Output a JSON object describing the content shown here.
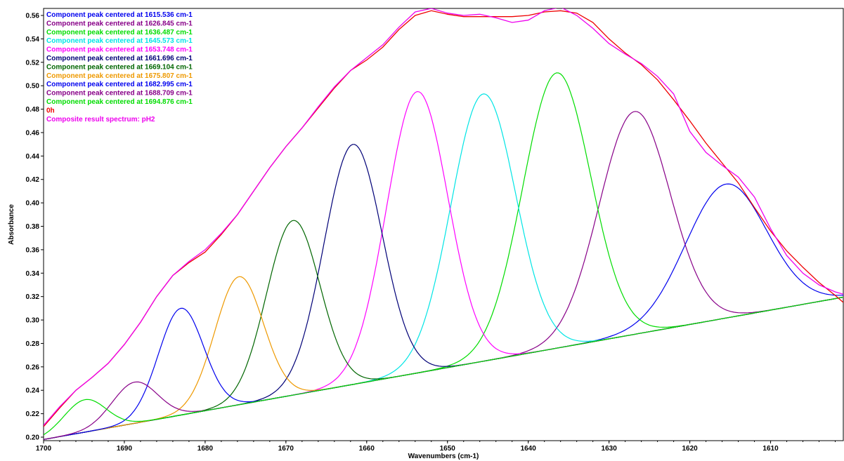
{
  "chart_data": {
    "type": "line",
    "title": "",
    "xlabel": "Wavenumbers (cm-1)",
    "ylabel": "Absorbance",
    "xlim": [
      1700,
      1601
    ],
    "ylim": [
      0.197,
      0.566
    ],
    "x_reversed": true,
    "grid": false,
    "legend_position": "top-left",
    "x_ticks": [
      1700,
      1690,
      1680,
      1670,
      1660,
      1650,
      1640,
      1630,
      1620,
      1610
    ],
    "y_ticks": [
      0.2,
      0.22,
      0.24,
      0.26,
      0.28,
      0.3,
      0.32,
      0.34,
      0.36,
      0.38,
      0.4,
      0.42,
      0.44,
      0.46,
      0.48,
      0.5,
      0.52,
      0.54,
      0.56
    ],
    "baseline": {
      "x": [
        1700,
        1601
      ],
      "y": [
        0.198,
        0.3195
      ],
      "color": "#00dd00"
    },
    "components": [
      {
        "name": "Component peak centered at 1615.536 cm-1",
        "center": 1615.536,
        "peak": 0.416,
        "sigma": 5.0,
        "color": "#0000ee"
      },
      {
        "name": "Component peak centered at 1626.845 cm-1",
        "center": 1626.845,
        "peak": 0.478,
        "sigma": 4.4,
        "color": "#880088"
      },
      {
        "name": "Component peak centered at 1636.487 cm-1",
        "center": 1636.487,
        "peak": 0.511,
        "sigma": 4.2,
        "color": "#00dd00"
      },
      {
        "name": "Component peak centered at 1645.573 cm-1",
        "center": 1645.573,
        "peak": 0.493,
        "sigma": 4.0,
        "color": "#00e5e5"
      },
      {
        "name": "Component peak centered at 1653.748 cm-1",
        "center": 1653.748,
        "peak": 0.495,
        "sigma": 3.8,
        "color": "#ff00ff"
      },
      {
        "name": "Component peak centered at 1661.696 cm-1",
        "center": 1661.696,
        "peak": 0.45,
        "sigma": 3.6,
        "color": "#000077"
      },
      {
        "name": "Component peak centered at 1669.104 cm-1",
        "center": 1669.104,
        "peak": 0.385,
        "sigma": 3.3,
        "color": "#006600"
      },
      {
        "name": "Component peak centered at 1675.807 cm-1",
        "center": 1675.807,
        "peak": 0.337,
        "sigma": 3.0,
        "color": "#ee9900"
      },
      {
        "name": "Component peak centered at 1682.995 cm-1",
        "center": 1682.995,
        "peak": 0.31,
        "sigma": 2.8,
        "color": "#0000ee"
      },
      {
        "name": "Component peak centered at 1688.709 cm-1",
        "center": 1688.709,
        "peak": 0.247,
        "sigma": 2.8,
        "color": "#880088"
      },
      {
        "name": "Component peak centered at 1694.876 cm-1",
        "center": 1694.876,
        "peak": 0.232,
        "sigma": 2.6,
        "color": "#00dd00"
      }
    ],
    "composite_series": [
      {
        "name": "0h",
        "color": "#ee0000",
        "x": [
          1700,
          1698,
          1696,
          1694,
          1692,
          1690,
          1688,
          1686,
          1684,
          1682,
          1680,
          1678,
          1676,
          1674,
          1672,
          1670,
          1668,
          1666,
          1664,
          1662,
          1660,
          1658,
          1656,
          1654,
          1652,
          1650,
          1648,
          1646,
          1644,
          1642,
          1640,
          1638,
          1636,
          1634,
          1632,
          1630,
          1628,
          1626,
          1624,
          1622,
          1620,
          1618,
          1616,
          1614,
          1612,
          1610,
          1608,
          1606,
          1604,
          1602,
          1601
        ],
        "y": [
          0.209,
          0.225,
          0.24,
          0.251,
          0.263,
          0.279,
          0.298,
          0.32,
          0.338,
          0.349,
          0.358,
          0.373,
          0.39,
          0.41,
          0.43,
          0.448,
          0.464,
          0.481,
          0.498,
          0.513,
          0.522,
          0.533,
          0.548,
          0.56,
          0.564,
          0.561,
          0.559,
          0.559,
          0.559,
          0.559,
          0.56,
          0.563,
          0.564,
          0.562,
          0.554,
          0.54,
          0.528,
          0.518,
          0.505,
          0.488,
          0.47,
          0.451,
          0.434,
          0.417,
          0.396,
          0.376,
          0.359,
          0.345,
          0.332,
          0.321,
          0.315
        ]
      },
      {
        "name": "Composite result spectrum: pH2",
        "color": "#ee00ee",
        "x": [
          1700,
          1698,
          1696,
          1694,
          1692,
          1690,
          1688,
          1686,
          1684,
          1682,
          1680,
          1678,
          1676,
          1674,
          1672,
          1670,
          1668,
          1666,
          1664,
          1662,
          1660,
          1658,
          1656,
          1654,
          1652,
          1650,
          1648,
          1646,
          1644,
          1642,
          1640,
          1638,
          1636,
          1634,
          1632,
          1630,
          1628,
          1626,
          1624,
          1622,
          1620,
          1618,
          1616,
          1614,
          1612,
          1610,
          1608,
          1606,
          1604,
          1602,
          1601
        ],
        "y": [
          0.21,
          0.226,
          0.24,
          0.251,
          0.263,
          0.279,
          0.298,
          0.32,
          0.338,
          0.35,
          0.36,
          0.374,
          0.39,
          0.41,
          0.43,
          0.448,
          0.464,
          0.482,
          0.499,
          0.513,
          0.524,
          0.535,
          0.55,
          0.563,
          0.566,
          0.562,
          0.56,
          0.561,
          0.558,
          0.554,
          0.556,
          0.564,
          0.567,
          0.56,
          0.549,
          0.536,
          0.527,
          0.519,
          0.508,
          0.493,
          0.461,
          0.443,
          0.432,
          0.422,
          0.405,
          0.378,
          0.355,
          0.34,
          0.33,
          0.324,
          0.322
        ]
      }
    ]
  }
}
